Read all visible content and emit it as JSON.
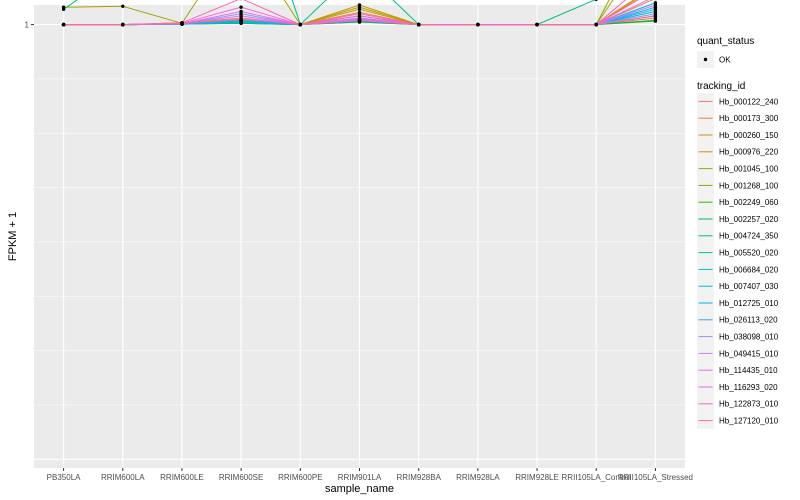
{
  "chart_data": {
    "type": "line",
    "xlabel": "sample_name",
    "ylabel": "FPKM + 1",
    "y_ticks": [
      1
    ],
    "y_tick_labels": [
      "1"
    ],
    "ylim": [
      -0.02,
      1.045
    ],
    "grid": true,
    "legend_position": "right",
    "categories": [
      "PB350LA",
      "RRIM600LA",
      "RRIM600LE",
      "RRIM600SE",
      "RRIM600PE",
      "RRIM901LA",
      "RRIM928BA",
      "RRIM928LA",
      "RRIM928LE",
      "RRII105LA_Control",
      "RRII105LA_Stressed"
    ],
    "legend_groups": [
      {
        "title": "quant_status",
        "entries": [
          {
            "label": "OK",
            "symbol": "point"
          }
        ]
      },
      {
        "title": "tracking_id",
        "entries": [
          {
            "label": "Hb_000122_240",
            "symbol": "line",
            "color": "#F8766D"
          },
          {
            "label": "Hb_000173_300",
            "symbol": "line",
            "color": "#EA8331"
          },
          {
            "label": "Hb_000260_150",
            "symbol": "line",
            "color": "#D89000"
          },
          {
            "label": "Hb_000976_220",
            "symbol": "line",
            "color": "#C09B00"
          },
          {
            "label": "Hb_001045_100",
            "symbol": "line",
            "color": "#A3A500"
          },
          {
            "label": "Hb_001268_100",
            "symbol": "line",
            "color": "#7CAE00"
          },
          {
            "label": "Hb_002249_060",
            "symbol": "line",
            "color": "#39B600"
          },
          {
            "label": "Hb_002257_020",
            "symbol": "line",
            "color": "#00BB4E"
          },
          {
            "label": "Hb_004724_350",
            "symbol": "line",
            "color": "#00BF7D"
          },
          {
            "label": "Hb_005520_020",
            "symbol": "line",
            "color": "#00C1A3"
          },
          {
            "label": "Hb_006684_020",
            "symbol": "line",
            "color": "#00BFC4"
          },
          {
            "label": "Hb_007407_030",
            "symbol": "line",
            "color": "#00BAE0"
          },
          {
            "label": "Hb_012725_010",
            "symbol": "line",
            "color": "#00B0F6"
          },
          {
            "label": "Hb_026113_020",
            "symbol": "line",
            "color": "#35A2FF"
          },
          {
            "label": "Hb_038098_010",
            "symbol": "line",
            "color": "#9590FF"
          },
          {
            "label": "Hb_049415_010",
            "symbol": "line",
            "color": "#C77CFF"
          },
          {
            "label": "Hb_114435_010",
            "symbol": "line",
            "color": "#E76BF3"
          },
          {
            "label": "Hb_116293_020",
            "symbol": "line",
            "color": "#FA62DB"
          },
          {
            "label": "Hb_122873_010",
            "symbol": "line",
            "color": "#FF62BC"
          },
          {
            "label": "Hb_127120_010",
            "symbol": "line",
            "color": "#FF6C91"
          }
        ]
      }
    ],
    "series": [
      {
        "name": "Hb_000122_240",
        "color": "#F8766D",
        "values": [
          1,
          1,
          1.003,
          1.012,
          1,
          1.006,
          1,
          1,
          1,
          1,
          1.015
        ]
      },
      {
        "name": "Hb_000173_300",
        "color": "#EA8331",
        "values": [
          1,
          1,
          1.004,
          1.01,
          1,
          1.028,
          1,
          1,
          1,
          1,
          1.06
        ]
      },
      {
        "name": "Hb_000260_150",
        "color": "#D89000",
        "values": [
          1,
          1,
          1.002,
          1.008,
          1,
          1.045,
          1,
          1,
          1,
          1,
          1.085
        ]
      },
      {
        "name": "Hb_000976_220",
        "color": "#C09B00",
        "values": [
          1,
          1,
          1.002,
          1.006,
          1,
          1.035,
          1,
          1,
          1,
          1,
          1.09
        ]
      },
      {
        "name": "Hb_001045_100",
        "color": "#A3A500",
        "values": [
          1.04,
          1.042,
          1.003,
          1.21,
          1,
          1.04,
          1,
          1,
          1,
          1,
          1.2
        ]
      },
      {
        "name": "Hb_001268_100",
        "color": "#7CAE00",
        "values": [
          1,
          1,
          1.002,
          1.004,
          1,
          1.015,
          1,
          1,
          1,
          1,
          1.26
        ]
      },
      {
        "name": "Hb_002249_060",
        "color": "#39B600",
        "values": [
          1,
          1,
          1.001,
          1.003,
          1,
          1.008,
          1,
          1,
          1,
          1,
          1.008
        ]
      },
      {
        "name": "Hb_002257_020",
        "color": "#00BB4E",
        "values": [
          1,
          1,
          1.001,
          1.003,
          1,
          1.006,
          1,
          1,
          1,
          1,
          1.01
        ]
      },
      {
        "name": "Hb_004724_350",
        "color": "#00BF7D",
        "values": [
          1.035,
          1.13,
          1.095,
          1.42,
          1,
          1.13,
          1,
          1,
          1,
          1.058,
          2.0
        ]
      },
      {
        "name": "Hb_005520_020",
        "color": "#00C1A3",
        "values": [
          1,
          1,
          1.001,
          1.004,
          1,
          1.02,
          1,
          1,
          1,
          1,
          1.02
        ]
      },
      {
        "name": "Hb_006684_020",
        "color": "#00BFC4",
        "values": [
          1,
          1,
          1.001,
          1.005,
          1,
          1.012,
          1,
          1,
          1,
          1,
          1.03
        ]
      },
      {
        "name": "Hb_007407_030",
        "color": "#00BAE0",
        "values": [
          1,
          1,
          1.001,
          1.006,
          1,
          1.01,
          1,
          1,
          1,
          1,
          1.04
        ]
      },
      {
        "name": "Hb_012725_010",
        "color": "#00B0F6",
        "values": [
          1,
          1,
          1.001,
          1.007,
          1,
          1.008,
          1,
          1,
          1,
          1,
          1.05
        ]
      },
      {
        "name": "Hb_026113_020",
        "color": "#35A2FF",
        "values": [
          1,
          1,
          1.001,
          1.01,
          1,
          1.009,
          1,
          1,
          1,
          1,
          1.035
        ]
      },
      {
        "name": "Hb_038098_010",
        "color": "#9590FF",
        "values": [
          1,
          1,
          1.002,
          1.025,
          1,
          1.01,
          1,
          1,
          1,
          1,
          1.025
        ]
      },
      {
        "name": "Hb_049415_010",
        "color": "#C77CFF",
        "values": [
          1,
          1,
          1.002,
          1.02,
          1,
          1.012,
          1,
          1,
          1,
          1,
          1.045
        ]
      },
      {
        "name": "Hb_114435_010",
        "color": "#E76BF3",
        "values": [
          1,
          1,
          1.002,
          1.03,
          1,
          1.015,
          1,
          1,
          1,
          1,
          1.065
        ]
      },
      {
        "name": "Hb_116293_020",
        "color": "#FA62DB",
        "values": [
          1,
          1,
          1.003,
          1.04,
          1,
          1.02,
          1,
          1,
          1,
          1,
          1.08
        ]
      },
      {
        "name": "Hb_122873_010",
        "color": "#FF62BC",
        "values": [
          1,
          1,
          1.004,
          1.06,
          1,
          1.025,
          1,
          1,
          1,
          1,
          1.115
        ]
      },
      {
        "name": "Hb_127120_010",
        "color": "#FF6C91",
        "values": [
          1,
          1,
          1.003,
          1.015,
          1,
          1.01,
          1,
          1,
          1,
          1,
          1.02
        ]
      }
    ]
  }
}
